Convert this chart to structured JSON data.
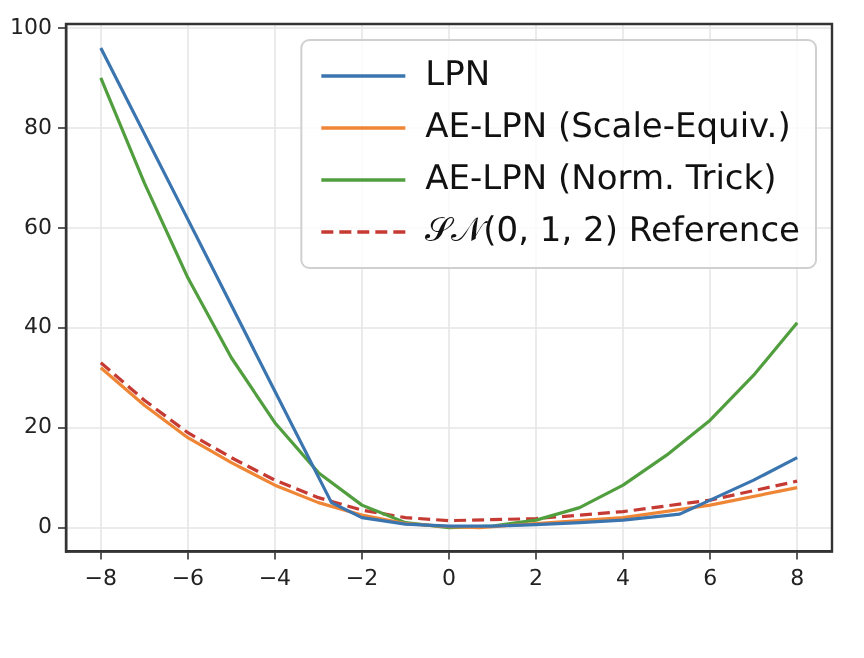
{
  "chart_data": {
    "type": "line",
    "xlim": [
      -8.8,
      8.8
    ],
    "xticks": [
      {
        "value": -8,
        "label": "−8"
      },
      {
        "value": -6,
        "label": "−6"
      },
      {
        "value": -4,
        "label": "−4"
      },
      {
        "value": -2,
        "label": "−2"
      },
      0,
      2,
      4,
      6,
      8
    ],
    "ylim": [
      -4.8,
      100.8
    ],
    "yticks": [
      0,
      20,
      40,
      60,
      80,
      100
    ],
    "grid": true,
    "legend": "top right",
    "series": [
      {
        "name": "LPN",
        "color": "#3b75af",
        "x": [
          -8,
          -6,
          -4,
          -2.7,
          -2,
          -1,
          0,
          1,
          2,
          3,
          4,
          5.3,
          6,
          7,
          8
        ],
        "values": [
          96,
          61.7,
          27.3,
          5,
          2,
          0.7,
          0.3,
          0.3,
          0.6,
          1,
          1.5,
          2.7,
          5.5,
          9.5,
          14
        ]
      },
      {
        "name": "AE-LPN (Scale-Equiv.)",
        "color": "#ef8636",
        "x": [
          -8,
          -7,
          -6,
          -5,
          -4,
          -3,
          -2,
          -1,
          0,
          0.7,
          2,
          4,
          6,
          8
        ],
        "values": [
          32,
          24.5,
          18,
          13,
          8.5,
          5,
          2.5,
          0.8,
          0.2,
          0,
          0.8,
          2,
          4.5,
          8
        ]
      },
      {
        "name": "AE-LPN (Norm. Trick)",
        "color": "#519e3e",
        "x": [
          -8,
          -7,
          -6,
          -5,
          -4,
          -3,
          -2,
          -1,
          0,
          1,
          2,
          3,
          4,
          5,
          6,
          7,
          8
        ],
        "values": [
          90,
          69,
          50,
          34,
          21,
          11,
          4.5,
          1,
          0,
          0.3,
          1.5,
          4,
          8.5,
          14.5,
          21.5,
          30.5,
          41
        ]
      },
      {
        "name": "𝒮𝒩(0, 1, 2) Reference",
        "color": "#c53a32",
        "line_style": "dashed",
        "x": [
          -8,
          -7,
          -6,
          -5,
          -4,
          -3,
          -2,
          -1,
          0,
          2,
          4,
          6,
          8
        ],
        "values": [
          33,
          25.5,
          19,
          14,
          9.5,
          6,
          3.5,
          2,
          1.4,
          1.8,
          3.2,
          5.5,
          9.3
        ]
      }
    ]
  }
}
